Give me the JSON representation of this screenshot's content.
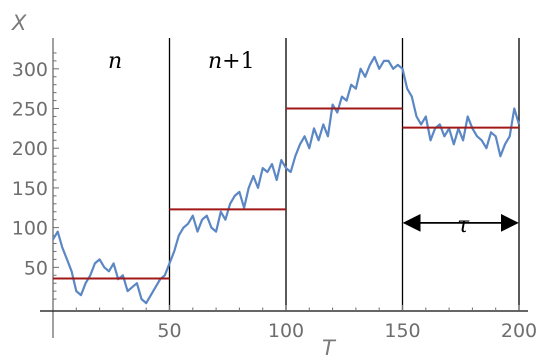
{
  "chart_data": {
    "type": "line",
    "xlabel": "T",
    "ylabel": "X",
    "xlim": [
      0,
      200
    ],
    "ylim": [
      -5,
      330
    ],
    "x_ticks": [
      50,
      100,
      150,
      200
    ],
    "y_ticks": [
      50,
      100,
      150,
      200,
      250,
      300
    ],
    "colors": {
      "series": "#5b87c4",
      "mean": "#a01818",
      "divider": "#000000",
      "axis": "#6e6e6e"
    },
    "series": [
      {
        "x": [
          0,
          2,
          4,
          6,
          8,
          10,
          12,
          14,
          16,
          18,
          20,
          22,
          24,
          26,
          28,
          30,
          32,
          34,
          36,
          38,
          40,
          42,
          44,
          46,
          48,
          50,
          52,
          54,
          56,
          58,
          60,
          62,
          64,
          66,
          68,
          70,
          72,
          74,
          76,
          78,
          80,
          82,
          84,
          86,
          88,
          90,
          92,
          94,
          96,
          98,
          100,
          102,
          104,
          106,
          108,
          110,
          112,
          114,
          116,
          118,
          120,
          122,
          124,
          126,
          128,
          130,
          132,
          134,
          136,
          138,
          140,
          142,
          144,
          146,
          148,
          150,
          152,
          154,
          156,
          158,
          160,
          162,
          164,
          166,
          168,
          170,
          172,
          174,
          176,
          178,
          180,
          182,
          184,
          186,
          188,
          190,
          192,
          194,
          196,
          198,
          200
        ],
        "y": [
          85,
          95,
          75,
          60,
          45,
          20,
          15,
          30,
          40,
          55,
          60,
          50,
          45,
          55,
          35,
          40,
          20,
          25,
          30,
          10,
          5,
          15,
          25,
          35,
          40,
          55,
          70,
          90,
          100,
          105,
          115,
          95,
          110,
          115,
          100,
          95,
          120,
          110,
          130,
          140,
          145,
          125,
          150,
          165,
          150,
          175,
          170,
          180,
          160,
          185,
          175,
          170,
          190,
          205,
          215,
          200,
          225,
          210,
          230,
          215,
          255,
          245,
          265,
          260,
          280,
          275,
          300,
          290,
          305,
          315,
          300,
          310,
          310,
          300,
          305,
          300,
          275,
          265,
          240,
          230,
          240,
          210,
          225,
          230,
          215,
          225,
          205,
          225,
          210,
          240,
          225,
          215,
          210,
          200,
          220,
          215,
          190,
          205,
          215,
          250,
          230
        ]
      }
    ],
    "interval_means": [
      {
        "x0": 0,
        "x1": 50,
        "y": 36
      },
      {
        "x0": 50,
        "x1": 100,
        "y": 123
      },
      {
        "x0": 100,
        "x1": 150,
        "y": 250
      },
      {
        "x0": 150,
        "x1": 200,
        "y": 226
      }
    ],
    "dividers": [
      50,
      100,
      150,
      200
    ],
    "annotations": {
      "n": "n",
      "n_plus_1_var": "n",
      "n_plus_1_rest": "+1",
      "tau": "τ"
    },
    "tau_arrow": {
      "x0": 150,
      "x1": 200,
      "y": 106
    }
  }
}
